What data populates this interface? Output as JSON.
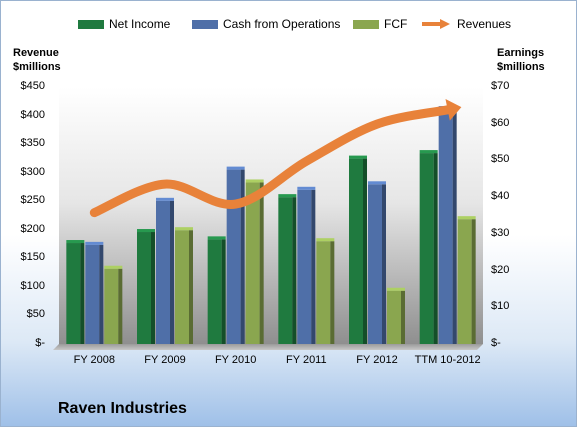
{
  "chart_data": {
    "type": "bar",
    "categories": [
      "FY 2008",
      "FY 2009",
      "FY 2010",
      "FY 2011",
      "FY 2012",
      "TTM 10-2012"
    ],
    "series": [
      {
        "name": "Net Income",
        "axis": "right",
        "values": [
          27.5,
          30.5,
          28.5,
          40,
          50.5,
          52
        ],
        "color": "#1f7a3f"
      },
      {
        "name": "Cash from Operations",
        "axis": "right",
        "values": [
          27,
          39,
          47.5,
          42,
          43.5,
          64
        ],
        "color": "#4f6fa8"
      },
      {
        "name": "FCF",
        "axis": "right",
        "values": [
          20.5,
          31,
          44,
          28,
          14.5,
          34
        ],
        "color": "#8aa64f"
      },
      {
        "name": "Revenues",
        "axis": "left",
        "type": "line",
        "values": [
          230,
          280,
          245,
          320,
          385,
          410
        ],
        "color": "#e8823a"
      }
    ],
    "left_axis": {
      "title_line1": "Revenue",
      "title_line2": "$millions",
      "ylim": [
        0,
        450
      ],
      "ticks": [
        "$-",
        "$50",
        "$100",
        "$150",
        "$200",
        "$250",
        "$300",
        "$350",
        "$400",
        "$450"
      ]
    },
    "right_axis": {
      "title_line1": "Earnings",
      "title_line2": "$millions",
      "ylim": [
        0,
        70
      ],
      "ticks": [
        "$-",
        "$10",
        "$20",
        "$30",
        "$40",
        "$50",
        "$60",
        "$70"
      ]
    },
    "legend_position": "top",
    "grid": false
  },
  "company_name": "Raven Industries"
}
